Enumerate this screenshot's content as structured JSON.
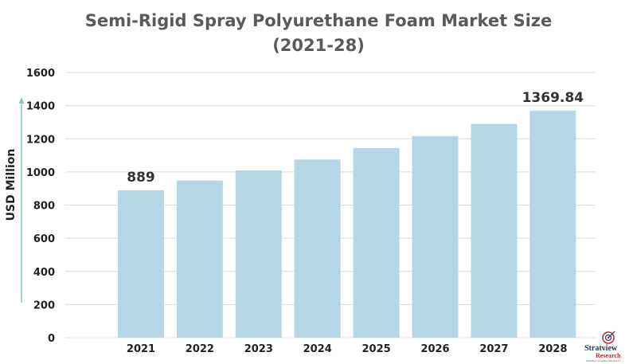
{
  "chart_data": {
    "type": "bar",
    "title_line1": "Semi-Rigid Spray Polyurethane Foam Market Size",
    "title_line2": "(2021-28)",
    "ylabel": "USD Million",
    "xlabel": "",
    "categories": [
      "2021",
      "2022",
      "2023",
      "2024",
      "2025",
      "2026",
      "2027",
      "2028"
    ],
    "values": [
      889,
      948,
      1009,
      1075,
      1144,
      1216,
      1290,
      1369.84
    ],
    "data_labels": [
      {
        "category": "2021",
        "label": "889"
      },
      {
        "category": "2028",
        "label": "1369.84"
      }
    ],
    "ylim": [
      0,
      1600
    ],
    "yticks": [
      "0",
      "200",
      "400",
      "600",
      "800",
      "1000",
      "1200",
      "1400",
      "1600"
    ],
    "grid": true,
    "bar_color": "#b5d7e5",
    "grid_color": "#dcdcdc",
    "arrow_color": "#8ec3d6"
  },
  "logo": {
    "name": "logo-stratview-research",
    "line1": "Stratview",
    "line2": "Research",
    "tagline": "Strategic Insights Delivered"
  }
}
